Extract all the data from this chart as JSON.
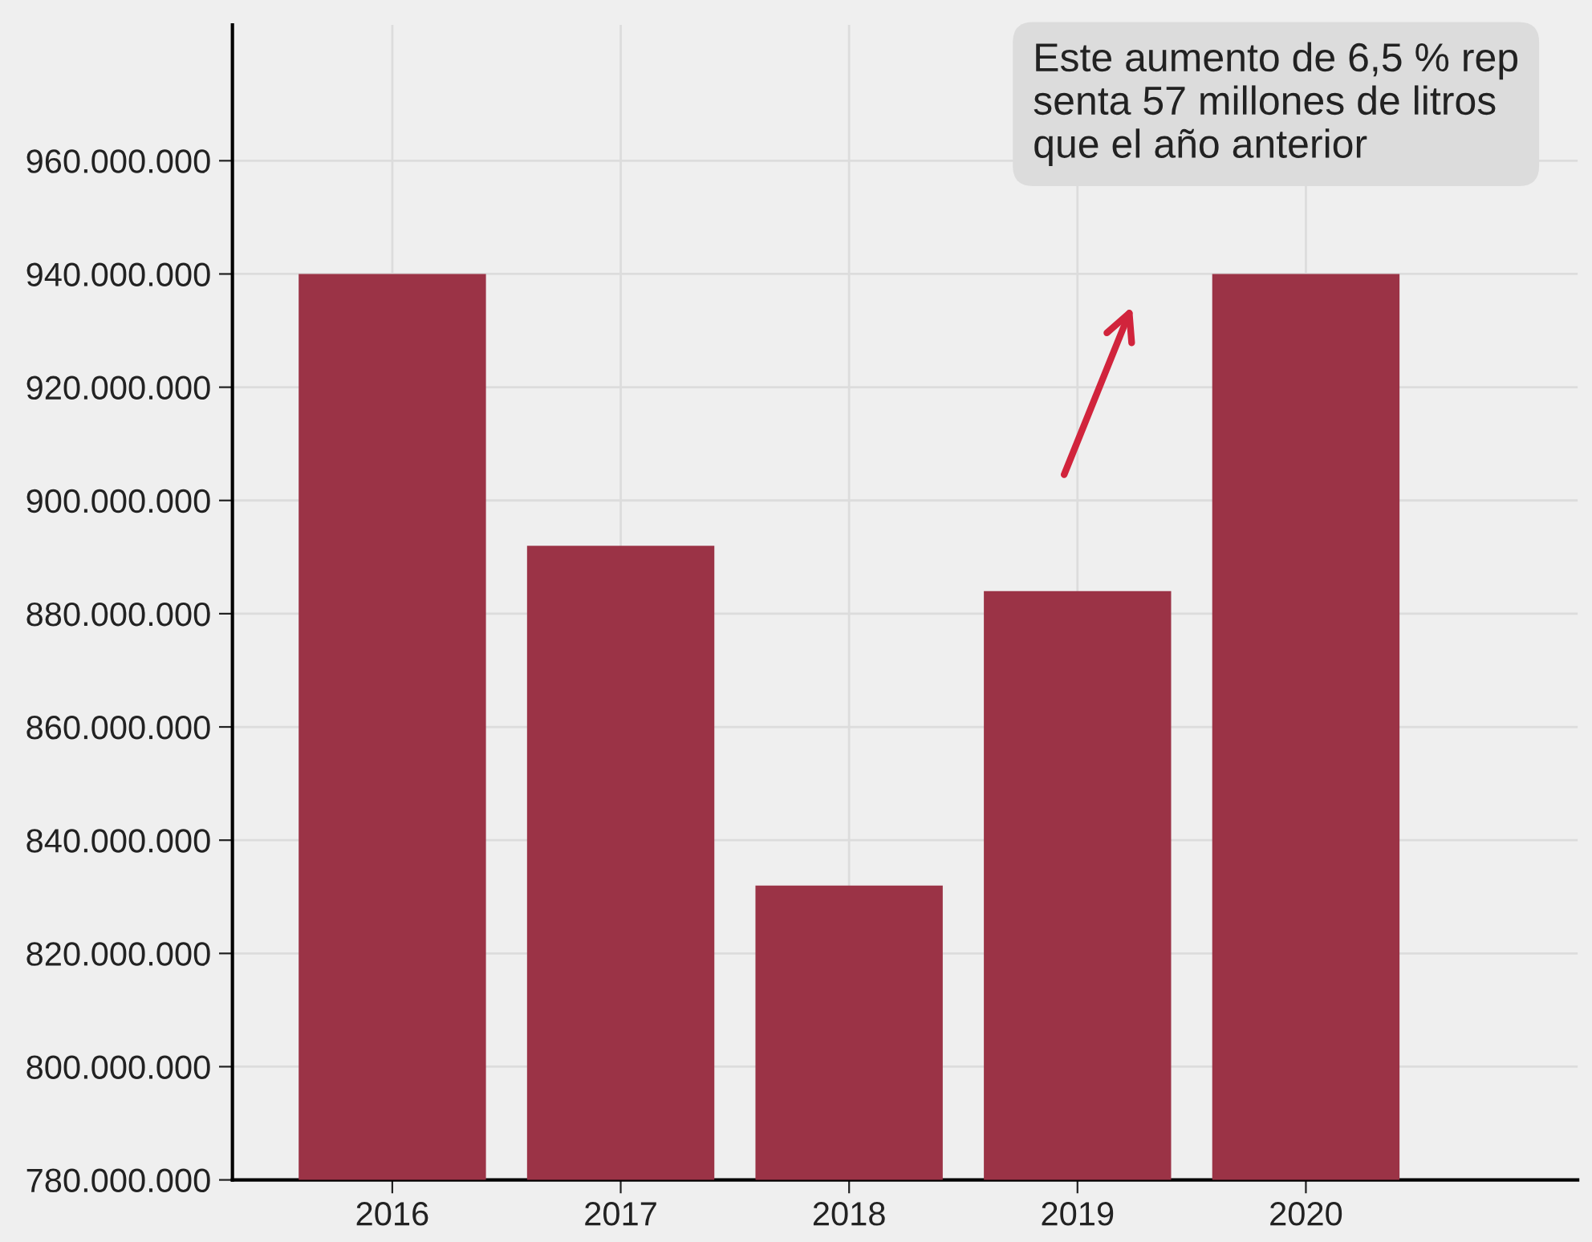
{
  "chart_data": {
    "type": "bar",
    "categories": [
      "2016",
      "2017",
      "2018",
      "2019",
      "2020"
    ],
    "values": [
      940000000,
      892000000,
      832000000,
      884000000,
      940000000
    ],
    "color": "#9b3346",
    "ylim": [
      780000000,
      984000000
    ],
    "yticks": [
      {
        "value": 780000000,
        "label": "780.000.000"
      },
      {
        "value": 800000000,
        "label": "800.000.000"
      },
      {
        "value": 820000000,
        "label": "820.000.000"
      },
      {
        "value": 840000000,
        "label": "840.000.000"
      },
      {
        "value": 860000000,
        "label": "860.000.000"
      },
      {
        "value": 880000000,
        "label": "880.000.000"
      },
      {
        "value": 900000000,
        "label": "900.000.000"
      },
      {
        "value": 920000000,
        "label": "920.000.000"
      },
      {
        "value": 940000000,
        "label": "940.000.000"
      },
      {
        "value": 960000000,
        "label": "960.000.000"
      }
    ],
    "annotations": [
      "Este aumento de 6,5 % rep\nsenta 57 millones de litros\nque el año anterior"
    ],
    "grid": true
  }
}
